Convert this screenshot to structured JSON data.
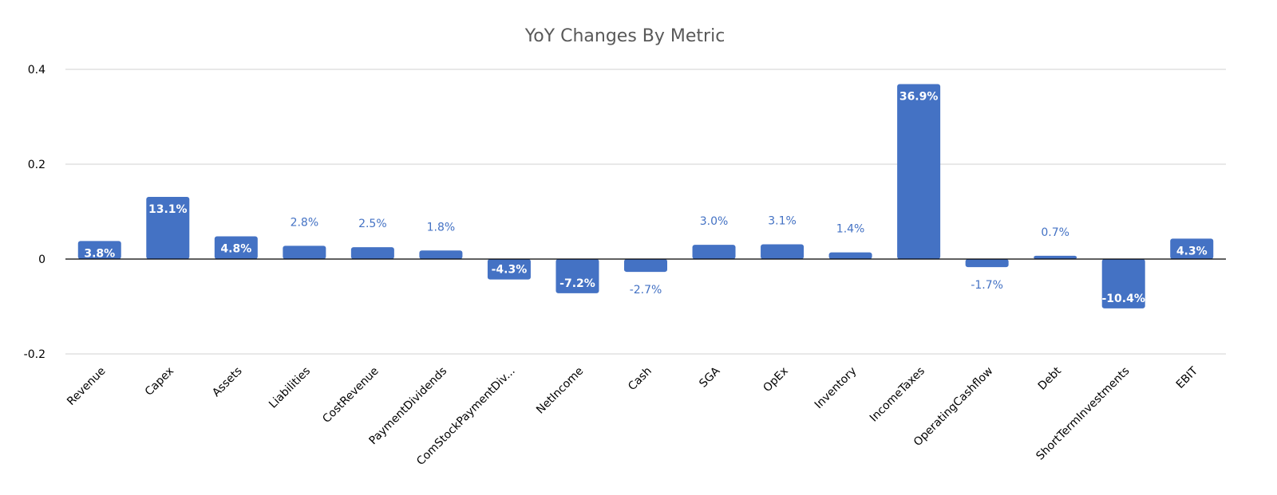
{
  "chart_data": {
    "type": "bar",
    "title": "YoY Changes By Metric",
    "xlabel": "",
    "ylabel": "",
    "ylim": [
      -0.2,
      0.4
    ],
    "yticks": [
      -0.2,
      0,
      0.2,
      0.4
    ],
    "ytick_labels": [
      "-0.2",
      "0",
      "0.2",
      "0.4"
    ],
    "grid": true,
    "legend": "none",
    "bar_color": "#4472c4",
    "categories": [
      "Revenue",
      "Capex",
      "Assets",
      "Liabilities",
      "CostRevenue",
      "PaymentDividends",
      "ComStockPaymentDiv...",
      "NetIncome",
      "Cash",
      "SGA",
      "OpEx",
      "Inventory",
      "IncomeTaxes",
      "OperatingCashflow",
      "Debt",
      "ShortTermInvestments",
      "EBIT"
    ],
    "values": [
      0.038,
      0.131,
      0.048,
      0.028,
      0.025,
      0.018,
      -0.043,
      -0.072,
      -0.027,
      0.03,
      0.031,
      0.014,
      0.369,
      -0.017,
      0.007,
      -0.104,
      0.043
    ],
    "data_labels": [
      "3.8%",
      "13.1%",
      "4.8%",
      "2.8%",
      "2.5%",
      "1.8%",
      "-4.3%",
      "-7.2%",
      "-2.7%",
      "3.0%",
      "3.1%",
      "1.4%",
      "36.9%",
      "-1.7%",
      "0.7%",
      "-10.4%",
      "4.3%"
    ],
    "label_inside": [
      true,
      true,
      true,
      false,
      false,
      false,
      true,
      true,
      false,
      false,
      false,
      false,
      true,
      false,
      false,
      true,
      true
    ]
  }
}
